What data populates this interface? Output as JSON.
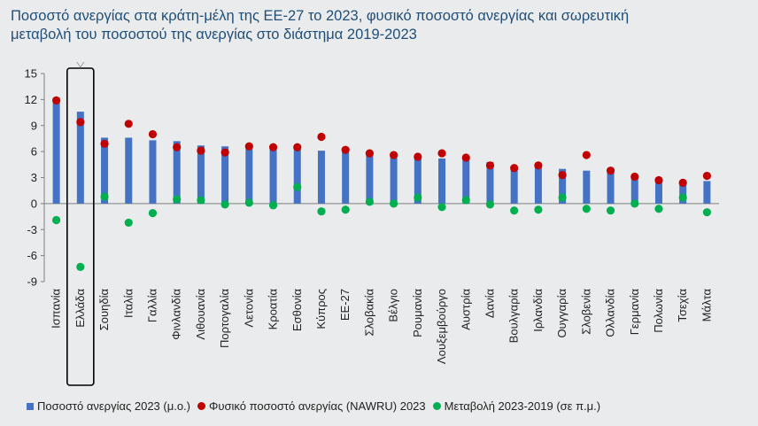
{
  "title": {
    "line1": "Ποσοστό ανεργίας στα κράτη-μέλη της ΕΕ-27 το 2023, φυσικό ποσοστό ανεργίας και σωρευτική",
    "line2": "μεταβολή του ποσοστού της ανεργίας στο διάστημα 2019-2023"
  },
  "legend": {
    "bar": "Ποσοστό ανεργίας 2023 (μ.ο.)",
    "red": "Φυσικό ποσοστό ανεργίας (NAWRU) 2023",
    "green": "Μεταβολή 2023-2019 (σε π.μ.)"
  },
  "colors": {
    "bar": "#4472c4",
    "red": "#c00000",
    "green": "#00b050",
    "highlight": "#000000",
    "title": "#1f4e79"
  },
  "chart_data": {
    "type": "bar",
    "ylim": [
      -9,
      15
    ],
    "yticks": [
      -9,
      -6,
      -3,
      0,
      3,
      6,
      9,
      12,
      15
    ],
    "highlight_category": "Ελλάδα",
    "categories": [
      "Ισπανία",
      "Ελλάδα",
      "Σουηδία",
      "Ιταλία",
      "Γαλλία",
      "Φινλανδία",
      "Λιθουανία",
      "Πορτογαλία",
      "Λετονία",
      "Κροατία",
      "Εσθονία",
      "Κύπρος",
      "ΕΕ-27",
      "Σλοβακία",
      "Βέλγιο",
      "Ρουμανία",
      "Λουξεμβούργο",
      "Αυστρία",
      "Δανία",
      "Βουλγαρία",
      "Ιρλανδία",
      "Ουγγαρία",
      "Σλοβενία",
      "Ολλανδία",
      "Γερμανία",
      "Πολωνία",
      "Τσεχία",
      "Μάλτα"
    ],
    "series": [
      {
        "name": "Ποσοστό ανεργίας 2023 (μ.ο.)",
        "kind": "bar",
        "values": [
          12.2,
          10.6,
          7.6,
          7.6,
          7.3,
          7.2,
          6.7,
          6.6,
          6.5,
          6.3,
          6.3,
          6.1,
          6.0,
          5.8,
          5.6,
          5.5,
          5.2,
          5.1,
          4.8,
          4.2,
          4.3,
          4.0,
          3.8,
          3.6,
          3.1,
          2.8,
          2.6,
          2.6
        ]
      },
      {
        "name": "Φυσικό ποσοστό ανεργίας (NAWRU) 2023",
        "kind": "dot",
        "values": [
          11.9,
          9.4,
          6.9,
          9.2,
          8.0,
          6.5,
          6.1,
          5.9,
          6.6,
          6.5,
          6.5,
          7.7,
          6.2,
          5.8,
          5.6,
          5.4,
          5.8,
          5.3,
          4.4,
          4.1,
          4.4,
          3.3,
          5.6,
          3.8,
          3.1,
          2.7,
          2.4,
          3.2
        ]
      },
      {
        "name": "Μεταβολή 2023-2019 (σε π.μ.)",
        "kind": "dot",
        "values": [
          -1.9,
          -7.3,
          0.8,
          -2.2,
          -1.1,
          0.5,
          0.4,
          -0.1,
          0.1,
          -0.2,
          1.9,
          -0.9,
          -0.7,
          0.2,
          0.0,
          0.7,
          -0.4,
          0.4,
          -0.1,
          -0.8,
          -0.7,
          0.7,
          -0.6,
          -0.8,
          0.0,
          -0.6,
          0.7,
          -1.0
        ]
      }
    ]
  }
}
